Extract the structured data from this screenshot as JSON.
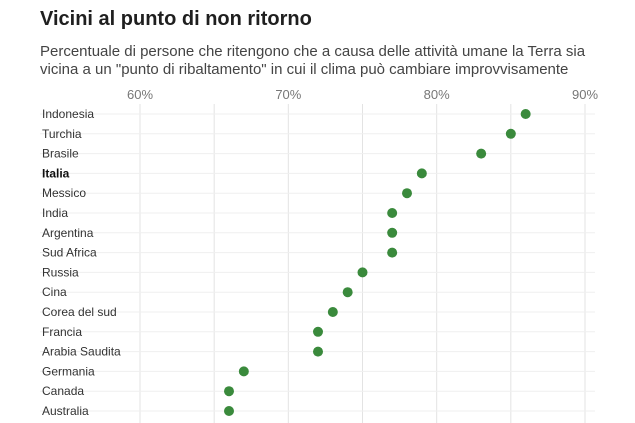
{
  "chart_data": {
    "type": "scatter",
    "title": "Vicini al punto di non ritorno",
    "subtitle": "Percentuale di persone che ritengono che a causa delle attività umane la Terra sia vicina a un \"punto di ribaltamento\" in cui il clima può cambiare improvvisamente",
    "xlim": [
      60,
      90
    ],
    "x_ticks": [
      "60%",
      "70%",
      "80%",
      "90%"
    ],
    "x_tick_values": [
      60,
      70,
      80,
      90
    ],
    "grid": true,
    "highlight": "Italia",
    "colors": {
      "dot": "#3a8a3c",
      "grid": "#e3e3e3"
    },
    "categories": [
      "Indonesia",
      "Turchia",
      "Brasile",
      "Italia",
      "Messico",
      "India",
      "Argentina",
      "Sud Africa",
      "Russia",
      "Cina",
      "Corea del sud",
      "Francia",
      "Arabia Saudita",
      "Germania",
      "Canada",
      "Australia"
    ],
    "values": [
      86,
      85,
      83,
      79,
      78,
      77,
      77,
      77,
      75,
      74,
      73,
      72,
      72,
      67,
      66,
      66
    ]
  }
}
